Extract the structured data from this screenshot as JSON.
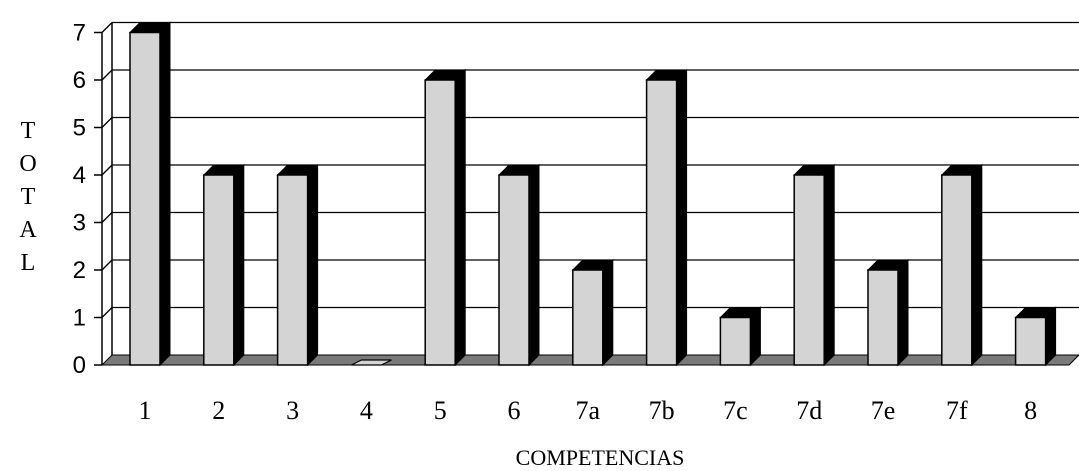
{
  "chart_data": {
    "type": "bar",
    "categories": [
      "1",
      "2",
      "3",
      "4",
      "5",
      "6",
      "7a",
      "7b",
      "7c",
      "7d",
      "7e",
      "7f",
      "8"
    ],
    "values": [
      7,
      4,
      4,
      0,
      6,
      4,
      2,
      6,
      1,
      4,
      2,
      4,
      1
    ],
    "xlabel": "COMPETENCIAS",
    "ylabel": "TOTAL",
    "ylim": [
      0,
      7
    ],
    "yticks": [
      "0",
      "1",
      "2",
      "3",
      "4",
      "5",
      "6",
      "7"
    ],
    "grid": true,
    "colors": {
      "bar_front": "#d4d4d4",
      "bar_side": "#000000",
      "floor": "#7a7a7a",
      "grid": "#000000"
    }
  }
}
